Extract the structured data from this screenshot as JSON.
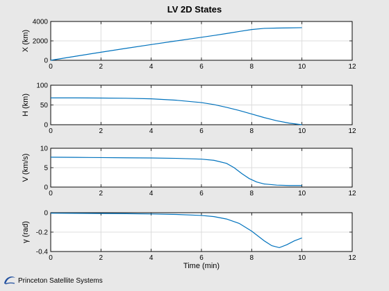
{
  "figure": {
    "title": "LV 2D States",
    "footer": "Princeton Satellite Systems",
    "line_color": "#0072bd",
    "background": "#e8e8e8",
    "logo_color": "#1f4e9e"
  },
  "chart_data": [
    {
      "type": "line",
      "ylabel": "X (km)",
      "xlabel": "",
      "xlim": [
        0,
        12
      ],
      "ylim": [
        0,
        4000
      ],
      "xticks": [
        0,
        2,
        4,
        6,
        8,
        10,
        12
      ],
      "yticks": [
        0,
        2000,
        4000
      ],
      "grid": true,
      "series": [
        {
          "x": [
            0,
            1,
            2,
            3,
            4,
            5,
            6,
            6.5,
            7,
            7.5,
            8,
            8.5,
            9,
            9.5,
            10
          ],
          "y": [
            0,
            420,
            830,
            1230,
            1620,
            2000,
            2370,
            2560,
            2760,
            2970,
            3170,
            3290,
            3320,
            3340,
            3360
          ]
        }
      ]
    },
    {
      "type": "line",
      "ylabel": "H (km)",
      "xlabel": "",
      "xlim": [
        0,
        12
      ],
      "ylim": [
        0,
        100
      ],
      "xticks": [
        0,
        2,
        4,
        6,
        8,
        10,
        12
      ],
      "yticks": [
        0,
        50,
        100
      ],
      "grid": true,
      "series": [
        {
          "x": [
            0,
            1,
            2,
            3,
            4,
            5,
            6,
            6.5,
            7,
            7.5,
            8,
            8.5,
            9,
            9.5,
            10
          ],
          "y": [
            68,
            68,
            67.5,
            67,
            65.5,
            62,
            56,
            51,
            44,
            36,
            27,
            18,
            10,
            4,
            0
          ]
        }
      ]
    },
    {
      "type": "line",
      "ylabel": "V (km/s)",
      "xlabel": "",
      "xlim": [
        0,
        12
      ],
      "ylim": [
        0,
        10
      ],
      "xticks": [
        0,
        2,
        4,
        6,
        8,
        10,
        12
      ],
      "yticks": [
        0,
        5,
        10
      ],
      "grid": true,
      "series": [
        {
          "x": [
            0,
            1,
            2,
            3,
            4,
            5,
            6,
            6.5,
            7,
            7.3,
            7.6,
            7.9,
            8.2,
            8.5,
            9,
            9.5,
            10
          ],
          "y": [
            7.7,
            7.65,
            7.6,
            7.55,
            7.5,
            7.4,
            7.2,
            6.9,
            6.1,
            5.0,
            3.5,
            2.2,
            1.3,
            0.8,
            0.5,
            0.4,
            0.4
          ]
        }
      ]
    },
    {
      "type": "line",
      "ylabel": "γ (rad)",
      "xlabel": "Time (min)",
      "xlim": [
        0,
        12
      ],
      "ylim": [
        -0.4,
        0
      ],
      "xticks": [
        0,
        2,
        4,
        6,
        8,
        10,
        12
      ],
      "yticks": [
        -0.4,
        -0.2,
        0
      ],
      "ytick_labels": [
        "-0.4",
        "-0.2",
        "0"
      ],
      "grid": true,
      "series": [
        {
          "x": [
            0,
            1,
            2,
            3,
            4,
            5,
            6,
            6.5,
            7,
            7.5,
            8,
            8.5,
            8.8,
            9.1,
            9.4,
            9.7,
            10
          ],
          "y": [
            -0.005,
            -0.006,
            -0.008,
            -0.01,
            -0.013,
            -0.018,
            -0.028,
            -0.04,
            -0.065,
            -0.11,
            -0.19,
            -0.29,
            -0.34,
            -0.36,
            -0.33,
            -0.29,
            -0.26
          ]
        }
      ]
    }
  ]
}
